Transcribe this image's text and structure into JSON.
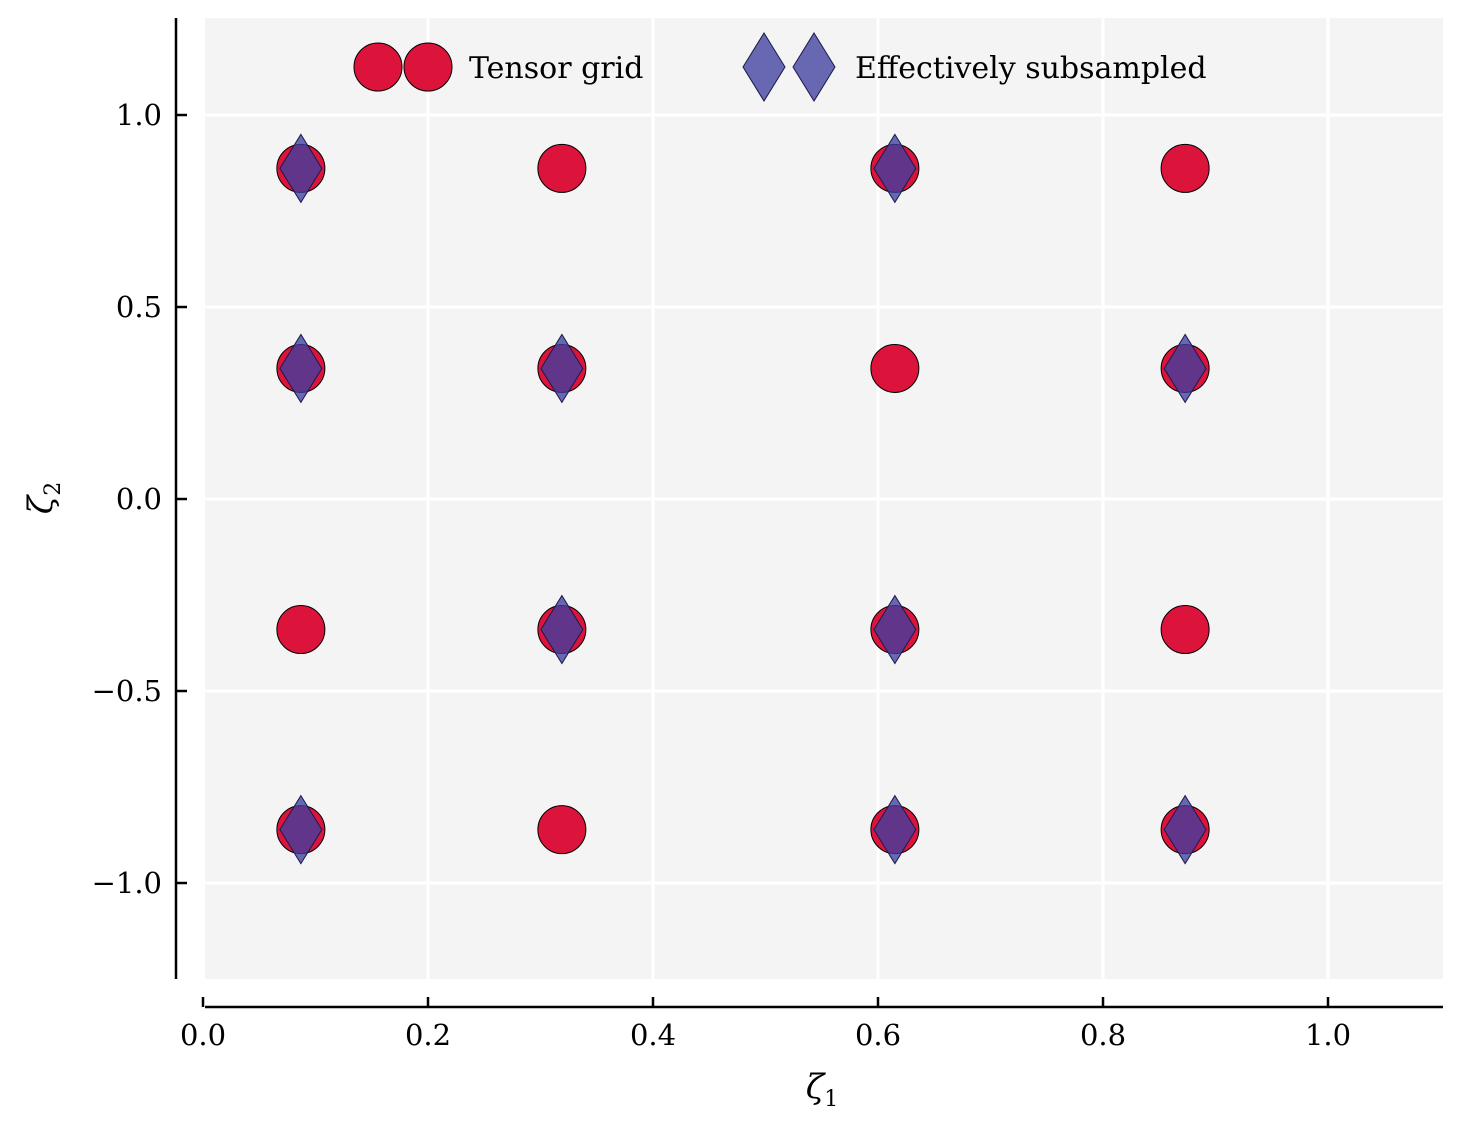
{
  "chart_data": {
    "type": "scatter",
    "title": "",
    "xlabel": "ζ",
    "xlabel_subscript": "1",
    "ylabel": "ζ",
    "ylabel_subscript": "2",
    "xlim": [
      -0.01,
      1.1
    ],
    "ylim": [
      -1.25,
      1.25
    ],
    "xticks": [
      0.0,
      0.2,
      0.4,
      0.6,
      0.8,
      1.0
    ],
    "xtick_labels": [
      "0.0",
      "0.2",
      "0.4",
      "0.6",
      "0.8",
      "1.0"
    ],
    "yticks": [
      1.0,
      0.5,
      0.0,
      -0.5,
      -1.0
    ],
    "ytick_labels": [
      "1.0",
      "0.5",
      "0.0",
      "−0.5",
      "−1.0"
    ],
    "grid": true,
    "legend_position": "top-center",
    "series": [
      {
        "name": "Tensor grid",
        "marker": "circle",
        "color": "#dc143c",
        "points": [
          [
            0.087,
            0.861
          ],
          [
            0.319,
            0.861
          ],
          [
            0.615,
            0.861
          ],
          [
            0.873,
            0.861
          ],
          [
            0.087,
            0.34
          ],
          [
            0.319,
            0.34
          ],
          [
            0.615,
            0.34
          ],
          [
            0.873,
            0.34
          ],
          [
            0.087,
            -0.34
          ],
          [
            0.319,
            -0.34
          ],
          [
            0.615,
            -0.34
          ],
          [
            0.873,
            -0.34
          ],
          [
            0.087,
            -0.861
          ],
          [
            0.319,
            -0.861
          ],
          [
            0.615,
            -0.861
          ],
          [
            0.873,
            -0.861
          ]
        ]
      },
      {
        "name": "Effectively subsampled",
        "marker": "diamond",
        "color": "#3f3f9f",
        "points": [
          [
            0.087,
            0.861
          ],
          [
            0.615,
            0.861
          ],
          [
            0.087,
            0.34
          ],
          [
            0.319,
            0.34
          ],
          [
            0.873,
            0.34
          ],
          [
            0.319,
            -0.34
          ],
          [
            0.615,
            -0.34
          ],
          [
            0.087,
            -0.861
          ],
          [
            0.615,
            -0.861
          ],
          [
            0.873,
            -0.861
          ]
        ]
      }
    ]
  },
  "colors": {
    "plot_background": "#f4f4f4",
    "grid": "#ffffff",
    "circle_fill": "#dc143c",
    "diamond_fill": "#3f3f9f"
  }
}
